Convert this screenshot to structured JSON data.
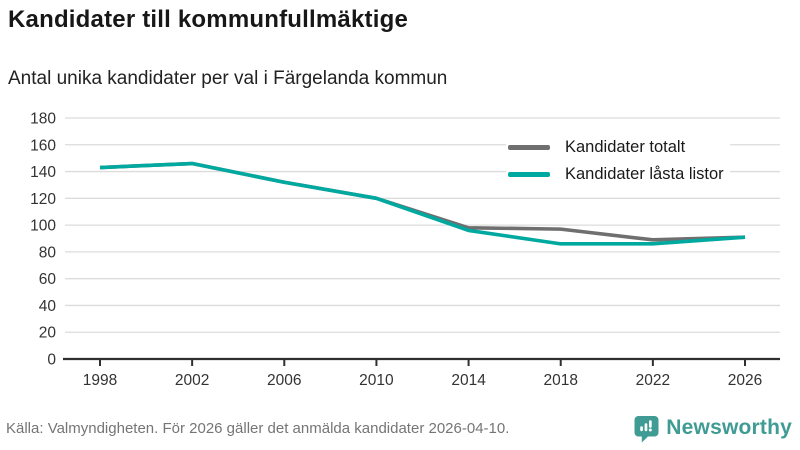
{
  "header": {
    "title": "Kandidater till kommunfullmäktige",
    "subtitle": "Antal unika kandidater per val i Färgelanda kommun"
  },
  "chart_data": {
    "type": "line",
    "x": [
      1998,
      2002,
      2006,
      2010,
      2014,
      2018,
      2022,
      2026
    ],
    "series": [
      {
        "name": "Kandidater totalt",
        "color": "#6f6f6f",
        "values": [
          143,
          146,
          132,
          120,
          98,
          97,
          89,
          91
        ]
      },
      {
        "name": "Kandidater låsta listor",
        "color": "#00a9a0",
        "values": [
          143,
          146,
          132,
          120,
          96,
          86,
          86,
          91
        ]
      }
    ],
    "title": "Kandidater till kommunfullmäktige",
    "subtitle": "Antal unika kandidater per val i Färgelanda kommun",
    "xlabel": "",
    "ylabel": "",
    "ylim": [
      0,
      180
    ],
    "ytick_step": 20,
    "xtick_labels": [
      "1998",
      "2002",
      "2006",
      "2010",
      "2014",
      "2018",
      "2022",
      "2026"
    ],
    "grid": "horizontal",
    "legend_position": "top-right-inside"
  },
  "footer": {
    "source": "Källa: Valmyndigheten. För 2026 gäller det anmälda kandidater 2026-04-10.",
    "brand": "Newsworthy"
  },
  "colors": {
    "series_gray": "#6f6f6f",
    "series_teal": "#00a9a0",
    "brand_teal": "#3f9b93",
    "grid_line": "#dcdcdc",
    "axis_line": "#2f2f2f",
    "tick_label": "#333333",
    "footer_text": "#757575"
  }
}
